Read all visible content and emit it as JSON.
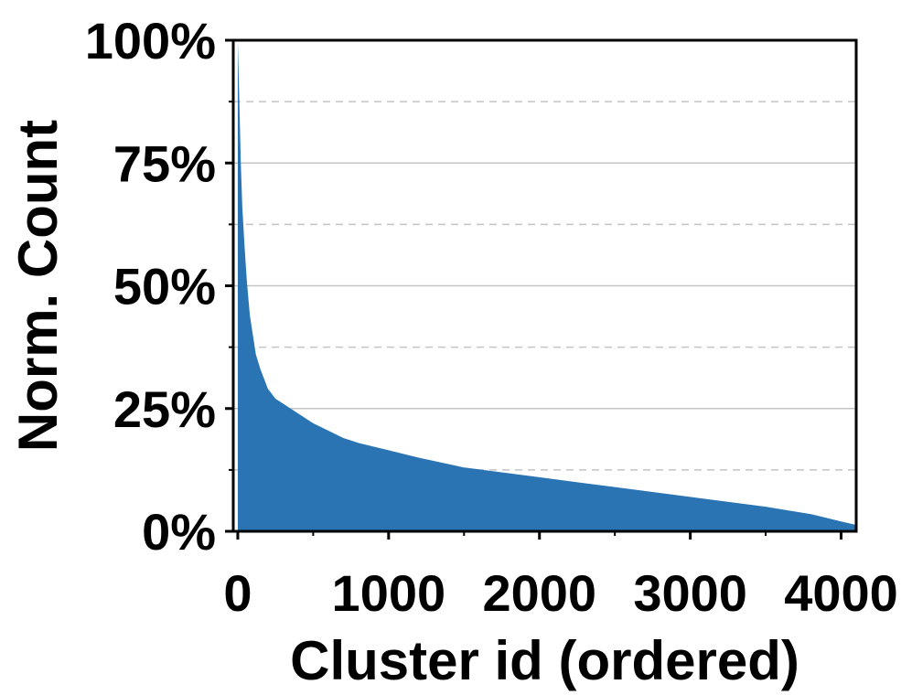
{
  "chart_data": {
    "type": "area",
    "xlabel": "Cluster id (ordered)",
    "ylabel": "Norm. Count",
    "xlim": [
      -30,
      4100
    ],
    "ylim": [
      0,
      100
    ],
    "x_ticks": [
      0,
      1000,
      2000,
      3000,
      4000
    ],
    "x_tick_labels": [
      "0",
      "1000",
      "2000",
      "3000",
      "4000"
    ],
    "x_minor_ticks": [
      500,
      1500,
      2500,
      3500
    ],
    "y_ticks": [
      0,
      25,
      50,
      75,
      100
    ],
    "y_tick_labels": [
      "0%",
      "25%",
      "50%",
      "75%",
      "100%"
    ],
    "y_major_grid": [
      25,
      50,
      75
    ],
    "y_minor_grid": [
      12.5,
      37.5,
      62.5,
      87.5
    ],
    "grid": true,
    "fill_color": "#2a74b4",
    "series": [
      {
        "x": [
          0,
          10,
          20,
          30,
          45,
          60,
          80,
          100,
          120,
          150,
          200,
          250,
          300,
          400,
          500,
          600,
          700,
          800,
          1000,
          1200,
          1500,
          2000,
          2500,
          3000,
          3500,
          3800,
          4000,
          4100
        ],
        "values": [
          100,
          88,
          75,
          66,
          58,
          51,
          44,
          40,
          36,
          33,
          29,
          27,
          26,
          24,
          22,
          20.5,
          19,
          18,
          16.5,
          15,
          13,
          11,
          9,
          7,
          5,
          3.5,
          2,
          1.3
        ]
      }
    ]
  }
}
